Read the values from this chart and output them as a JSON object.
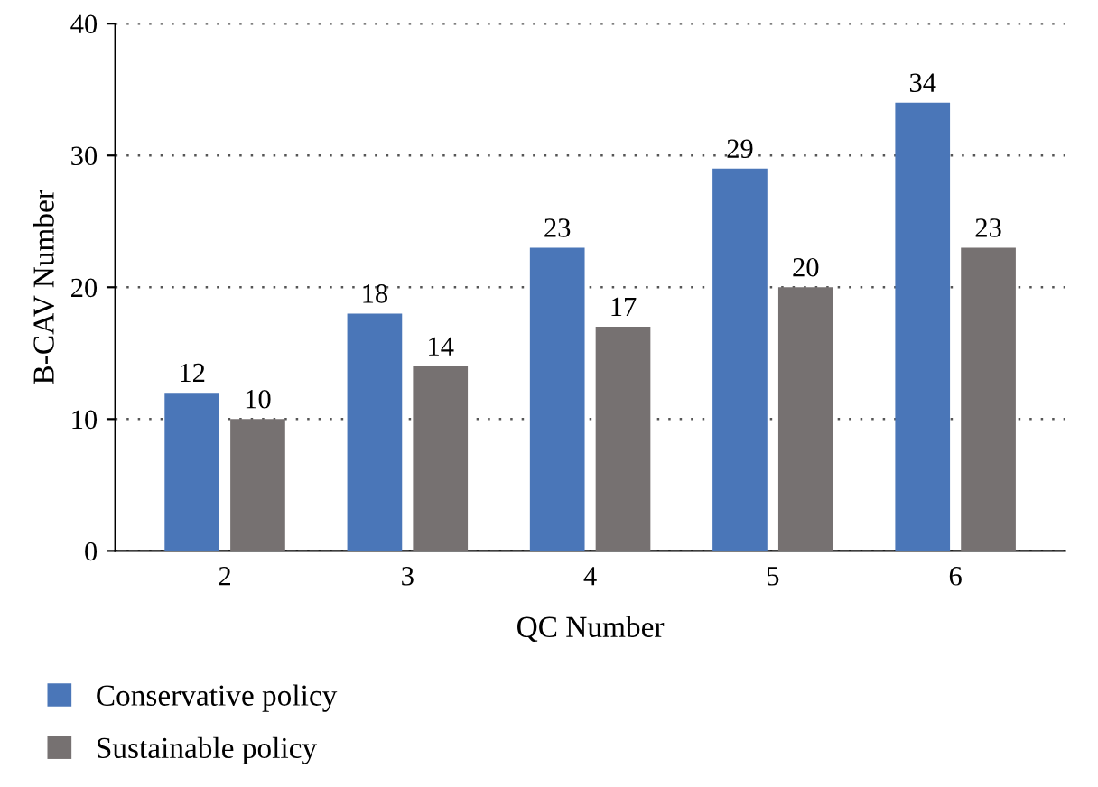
{
  "chart_data": {
    "type": "bar",
    "xlabel": "QC Number",
    "ylabel": "B-CAV Number",
    "categories": [
      "2",
      "3",
      "4",
      "5",
      "6"
    ],
    "series": [
      {
        "name": "Conservative policy",
        "color": "#4a76b8",
        "values": [
          12,
          18,
          23,
          29,
          34
        ]
      },
      {
        "name": "Sustainable policy",
        "color": "#767171",
        "values": [
          10,
          14,
          17,
          20,
          23
        ]
      }
    ],
    "ylim": [
      0,
      40
    ],
    "yticks": [
      0,
      10,
      20,
      30,
      40
    ],
    "grid": "y",
    "data_labels": true,
    "legend": "bottom left"
  }
}
